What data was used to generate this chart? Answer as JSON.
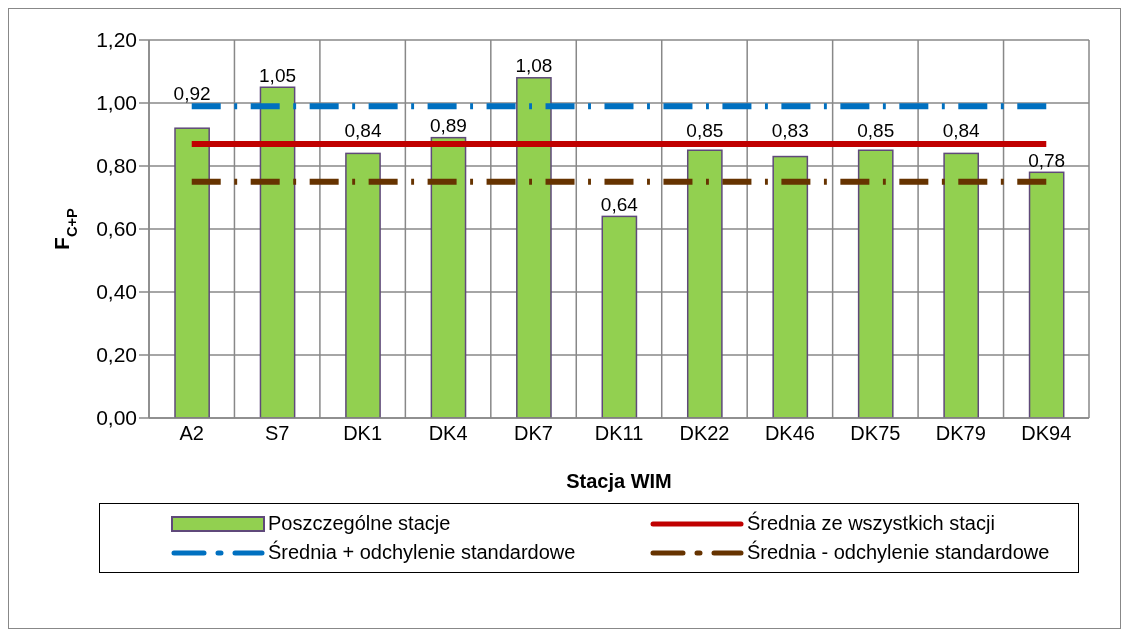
{
  "chart_data": {
    "type": "bar",
    "xlabel": "Stacja WIM",
    "ylabel": "F$_{C+P}$",
    "categories": [
      "A2",
      "S7",
      "DK1",
      "DK4",
      "DK7",
      "DK11",
      "DK22",
      "DK46",
      "DK75",
      "DK79",
      "DK94"
    ],
    "series": [
      {
        "name": "Poszczególne stacje",
        "color": "#92d050",
        "values": [
          0.92,
          1.05,
          0.84,
          0.89,
          1.08,
          0.64,
          0.85,
          0.83,
          0.85,
          0.84,
          0.78
        ],
        "value_labels": [
          "0,92",
          "1,05",
          "0,84",
          "0,89",
          "1,08",
          "0,64",
          "0,85",
          "0,83",
          "0,85",
          "0,84",
          "0,78"
        ]
      },
      {
        "name": "Średnia ze wszystkich stacji",
        "type": "line",
        "color": "#c00000",
        "line_style": "solid",
        "values": [
          0.87,
          0.87,
          0.87,
          0.87,
          0.87,
          0.87,
          0.87,
          0.87,
          0.87,
          0.87,
          0.87
        ]
      },
      {
        "name": "Średnia + odchylenie standardowe",
        "type": "line",
        "color": "#0070c0",
        "line_style": "dashed",
        "values": [
          0.99,
          0.99,
          0.99,
          0.99,
          0.99,
          0.99,
          0.99,
          0.99,
          0.99,
          0.99,
          0.99
        ]
      },
      {
        "name": "Średnia - odchylenie standardowe",
        "type": "line",
        "color": "#663300",
        "line_style": "dashed",
        "values": [
          0.75,
          0.75,
          0.75,
          0.75,
          0.75,
          0.75,
          0.75,
          0.75,
          0.75,
          0.75,
          0.75
        ]
      }
    ],
    "ylim": [
      0,
      1.2
    ],
    "yticks": [
      {
        "value": 0,
        "label": "0,00"
      },
      {
        "value": 0.2,
        "label": "0,20"
      },
      {
        "value": 0.4,
        "label": "0,40"
      },
      {
        "value": 0.6,
        "label": "0,60"
      },
      {
        "value": 0.8,
        "label": "0,80"
      },
      {
        "value": 1,
        "label": "1,00"
      },
      {
        "value": 1.2,
        "label": "1,20"
      }
    ],
    "grid": true,
    "legend": "bottom",
    "marker": "none"
  }
}
